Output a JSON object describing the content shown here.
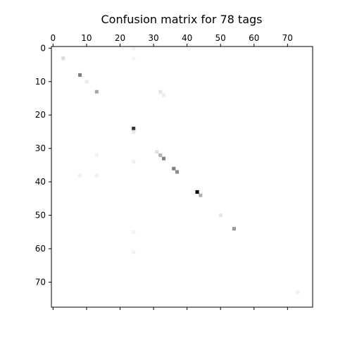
{
  "chart_data": {
    "type": "heatmap",
    "title": "Confusion matrix for 78 tags",
    "xlabel": "",
    "ylabel": "",
    "n": 78,
    "xlim": [
      0,
      78
    ],
    "ylim": [
      0,
      78
    ],
    "x_axis_position": "top",
    "x_ticks": [
      0,
      10,
      20,
      30,
      40,
      50,
      60,
      70
    ],
    "y_ticks": [
      0,
      10,
      20,
      30,
      40,
      50,
      60,
      70
    ],
    "grid": false,
    "colormap": "gray_r",
    "colors": {
      "low": "#ffffff",
      "high": "#000000",
      "frame": "#000000"
    },
    "cells": [
      {
        "row": 3,
        "col": 3,
        "value": 0.15
      },
      {
        "row": 8,
        "col": 8,
        "value": 0.5
      },
      {
        "row": 10,
        "col": 10,
        "value": 0.08
      },
      {
        "row": 13,
        "col": 13,
        "value": 0.35
      },
      {
        "row": 13,
        "col": 32,
        "value": 0.1
      },
      {
        "row": 14,
        "col": 33,
        "value": 0.08
      },
      {
        "row": 24,
        "col": 24,
        "value": 0.8
      },
      {
        "row": 25,
        "col": 24,
        "value": 0.1
      },
      {
        "row": 31,
        "col": 31,
        "value": 0.12
      },
      {
        "row": 32,
        "col": 32,
        "value": 0.3
      },
      {
        "row": 33,
        "col": 33,
        "value": 0.5
      },
      {
        "row": 32,
        "col": 13,
        "value": 0.06
      },
      {
        "row": 34,
        "col": 24,
        "value": 0.06
      },
      {
        "row": 36,
        "col": 36,
        "value": 0.5
      },
      {
        "row": 37,
        "col": 37,
        "value": 0.45
      },
      {
        "row": 38,
        "col": 8,
        "value": 0.06
      },
      {
        "row": 38,
        "col": 13,
        "value": 0.06
      },
      {
        "row": 43,
        "col": 43,
        "value": 1.0
      },
      {
        "row": 44,
        "col": 44,
        "value": 0.3
      },
      {
        "row": 50,
        "col": 50,
        "value": 0.1
      },
      {
        "row": 54,
        "col": 54,
        "value": 0.4
      },
      {
        "row": 55,
        "col": 24,
        "value": 0.05
      },
      {
        "row": 61,
        "col": 24,
        "value": 0.06
      },
      {
        "row": 73,
        "col": 73,
        "value": 0.06
      },
      {
        "row": 0,
        "col": 24,
        "value": 0.05
      },
      {
        "row": 3,
        "col": 24,
        "value": 0.04
      }
    ]
  }
}
